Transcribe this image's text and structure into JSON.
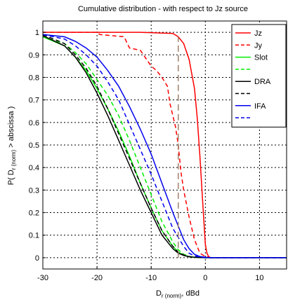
{
  "chart_data": {
    "type": "line",
    "title": "Cumulative distribution - with respect to Jz source",
    "xlabel": {
      "main": "D",
      "sub": "r (norm)",
      "unit": ", dBd"
    },
    "ylabel": {
      "pre": "P( D",
      "sub": "r (norm)",
      "post": " > abscissa )"
    },
    "xlim": [
      -30,
      15
    ],
    "ylim": [
      -0.05,
      1.05
    ],
    "xticks": [
      -30,
      -20,
      -10,
      0,
      10
    ],
    "yticks": [
      0,
      0.1,
      0.2,
      0.3,
      0.4,
      0.5,
      0.6,
      0.7,
      0.8,
      0.9,
      1
    ],
    "grid": true,
    "legend_position": "top-right",
    "series": [
      {
        "name": "Jz",
        "color": "#ff0000",
        "dash": "solid",
        "x": [
          -30,
          -12,
          -6,
          -5,
          -4,
          -3,
          -2,
          -1.5,
          -1,
          -0.5,
          0,
          0.3,
          0.6,
          1,
          15
        ],
        "y": [
          1,
          1,
          0.995,
          0.98,
          0.95,
          0.88,
          0.75,
          0.62,
          0.45,
          0.25,
          0.06,
          0.02,
          0.005,
          0,
          0
        ]
      },
      {
        "name": "Jy",
        "color": "#ff0000",
        "dash": "dashed",
        "x": [
          -30,
          -20,
          -19.5,
          -15,
          -14,
          -12,
          -10,
          -9,
          -8,
          -7,
          -6.5,
          -6,
          -5.5,
          -5,
          -4.5,
          -4,
          -3,
          -2,
          -1,
          0,
          1,
          15
        ],
        "y": [
          1,
          1,
          0.99,
          0.98,
          0.93,
          0.92,
          0.85,
          0.83,
          0.8,
          0.76,
          0.68,
          0.63,
          0.58,
          0.5,
          0.38,
          0.3,
          0.18,
          0.08,
          0.02,
          0.005,
          0,
          0
        ]
      },
      {
        "name": "Slot",
        "color": "#00ee00",
        "dash": "solid",
        "x": [
          -30,
          -26,
          -24,
          -22,
          -20,
          -18,
          -16,
          -14,
          -12,
          -10,
          -8,
          -6,
          -5,
          -4,
          -3,
          -2,
          -1,
          0,
          15
        ],
        "y": [
          0.98,
          0.94,
          0.89,
          0.83,
          0.75,
          0.66,
          0.56,
          0.45,
          0.33,
          0.22,
          0.12,
          0.05,
          0.025,
          0.012,
          0.005,
          0.002,
          0.001,
          0,
          0
        ]
      },
      {
        "name": "",
        "color": "#00ee00",
        "dash": "dashed",
        "x": [
          -30,
          -26,
          -24,
          -22,
          -20,
          -18,
          -16,
          -14,
          -12,
          -10,
          -8,
          -6,
          -5,
          -4,
          -3,
          -2,
          0,
          15
        ],
        "y": [
          0.98,
          0.95,
          0.91,
          0.86,
          0.79,
          0.72,
          0.63,
          0.52,
          0.4,
          0.28,
          0.16,
          0.07,
          0.035,
          0.015,
          0.006,
          0.002,
          0,
          0
        ]
      },
      {
        "name": "DRA",
        "color": "#000000",
        "dash": "solid",
        "x": [
          -30,
          -26,
          -24,
          -22,
          -20,
          -18,
          -16,
          -14,
          -12,
          -10,
          -8,
          -6,
          -5,
          -4,
          -3,
          -2,
          -1,
          0,
          15
        ],
        "y": [
          0.985,
          0.94,
          0.89,
          0.82,
          0.73,
          0.63,
          0.52,
          0.41,
          0.3,
          0.2,
          0.1,
          0.04,
          0.02,
          0.01,
          0.004,
          0.002,
          0.001,
          0,
          0
        ]
      },
      {
        "name": "",
        "color": "#000000",
        "dash": "dashed",
        "x": [
          -30,
          -26,
          -24,
          -22,
          -20,
          -18,
          -16,
          -14,
          -12,
          -10,
          -8,
          -6,
          -5,
          -4,
          -3,
          -2,
          0,
          15
        ],
        "y": [
          0.99,
          0.95,
          0.9,
          0.84,
          0.76,
          0.66,
          0.55,
          0.44,
          0.33,
          0.22,
          0.12,
          0.05,
          0.025,
          0.012,
          0.005,
          0.002,
          0,
          0
        ]
      },
      {
        "name": "IFA",
        "color": "#0000ee",
        "dash": "solid",
        "x": [
          -30,
          -26,
          -24,
          -22,
          -20,
          -18,
          -16,
          -14,
          -12,
          -10,
          -8,
          -6,
          -4,
          -3,
          -2,
          -1,
          0,
          1,
          15
        ],
        "y": [
          0.99,
          0.98,
          0.96,
          0.93,
          0.89,
          0.83,
          0.76,
          0.67,
          0.57,
          0.46,
          0.33,
          0.2,
          0.08,
          0.04,
          0.015,
          0.005,
          0.002,
          0,
          0
        ]
      },
      {
        "name": "",
        "color": "#0000ee",
        "dash": "dashed",
        "x": [
          -30,
          -26,
          -24,
          -22,
          -20,
          -18,
          -16,
          -14,
          -12,
          -10,
          -8,
          -6,
          -4,
          -3,
          -2,
          -1,
          0,
          15
        ],
        "y": [
          0.99,
          0.97,
          0.94,
          0.9,
          0.85,
          0.78,
          0.7,
          0.59,
          0.48,
          0.37,
          0.25,
          0.13,
          0.05,
          0.02,
          0.008,
          0.003,
          0,
          0
        ]
      }
    ],
    "annotations": [
      {
        "type": "vertical-dashed-line",
        "color": "#a0826d",
        "x": -5,
        "y_from": 0,
        "y_to": 0.98
      }
    ]
  }
}
